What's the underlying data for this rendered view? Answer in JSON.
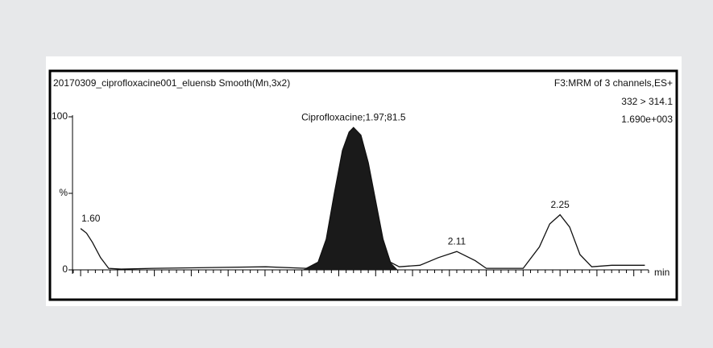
{
  "chart_data": {
    "type": "line",
    "title": "20170309_ciprofloxacine001_eluensb Smooth(Mn,3x2)",
    "info": [
      "F3:MRM of 3 channels,ES+",
      "332 > 314.1",
      "1.690e+003"
    ],
    "x_label": "min",
    "xlim": [
      1.589,
      2.37
    ],
    "ylim": [
      0,
      100
    ],
    "yticks": [
      0,
      {
        "value": 50,
        "label": "%"
      },
      100
    ],
    "shaded_range": [
      1.9,
      2.03
    ],
    "color": "#111111",
    "x": [
      1.6,
      1.608,
      1.616,
      1.627,
      1.638,
      1.655,
      1.698,
      1.851,
      1.906,
      1.922,
      1.933,
      1.944,
      1.955,
      1.964,
      1.97,
      1.98,
      1.99,
      2.0,
      2.01,
      2.02,
      2.032,
      2.06,
      2.085,
      2.11,
      2.135,
      2.15,
      2.2,
      2.222,
      2.236,
      2.25,
      2.263,
      2.277,
      2.293,
      2.32,
      2.365
    ],
    "values": [
      27,
      24,
      18,
      8,
      1,
      0.5,
      1,
      2,
      1,
      5,
      20,
      50,
      78,
      90,
      93,
      88,
      70,
      45,
      20,
      5,
      2,
      3,
      8,
      12,
      6,
      1,
      1,
      15,
      30,
      36,
      28,
      10,
      2,
      3,
      3
    ],
    "peaks": [
      {
        "label": "1.60",
        "x": 1.6,
        "y": 27
      },
      {
        "label": "Ciprofloxacine;1.97;81.5",
        "x": 1.97,
        "y": 93
      },
      {
        "label": "2.11",
        "x": 2.11,
        "y": 12
      },
      {
        "label": "2.25",
        "x": 2.25,
        "y": 36
      }
    ]
  }
}
